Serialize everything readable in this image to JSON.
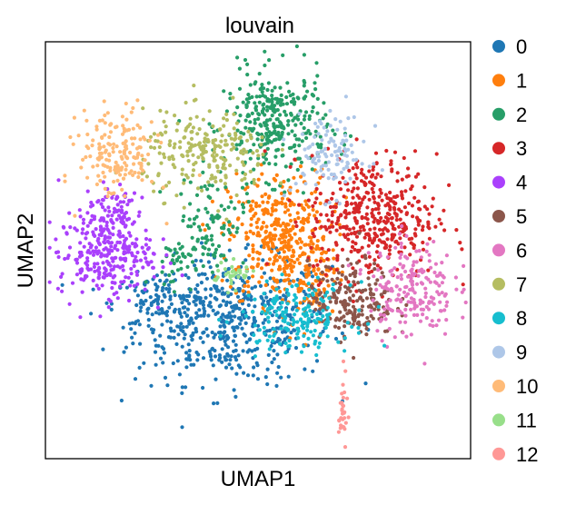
{
  "chart_data": {
    "type": "scatter",
    "title": "louvain",
    "xlabel": "UMAP1",
    "ylabel": "UMAP2",
    "grid": false,
    "legend_position": "right",
    "xlim": [
      0,
      10
    ],
    "ylim": [
      0,
      10
    ],
    "series": [
      {
        "name": "0",
        "color": "#1f77b4",
        "clusters": [
          {
            "cx": 4.4,
            "cy": 3.3,
            "sx": 1.15,
            "sy": 0.75,
            "n": 520
          },
          {
            "cx": 2.6,
            "cy": 3.7,
            "sx": 0.5,
            "sy": 0.35,
            "n": 90
          }
        ]
      },
      {
        "name": "1",
        "color": "#ff7f0e",
        "clusters": [
          {
            "cx": 5.5,
            "cy": 5.3,
            "sx": 0.6,
            "sy": 0.8,
            "n": 380
          },
          {
            "cx": 6.3,
            "cy": 4.3,
            "sx": 0.4,
            "sy": 0.5,
            "n": 70
          }
        ]
      },
      {
        "name": "2",
        "color": "#279e68",
        "clusters": [
          {
            "cx": 5.4,
            "cy": 8.0,
            "sx": 0.6,
            "sy": 0.65,
            "n": 320
          },
          {
            "cx": 3.9,
            "cy": 5.7,
            "sx": 0.4,
            "sy": 0.55,
            "n": 90
          },
          {
            "cx": 3.0,
            "cy": 4.7,
            "sx": 0.25,
            "sy": 0.3,
            "n": 40
          }
        ]
      },
      {
        "name": "3",
        "color": "#d62728",
        "clusters": [
          {
            "cx": 7.7,
            "cy": 5.8,
            "sx": 0.75,
            "sy": 0.75,
            "n": 420
          }
        ]
      },
      {
        "name": "4",
        "color": "#aa40fc",
        "clusters": [
          {
            "cx": 1.4,
            "cy": 4.9,
            "sx": 0.55,
            "sy": 0.5,
            "n": 280
          },
          {
            "cx": 1.6,
            "cy": 6.0,
            "sx": 0.35,
            "sy": 0.3,
            "n": 70
          }
        ]
      },
      {
        "name": "5",
        "color": "#8c564b",
        "clusters": [
          {
            "cx": 7.2,
            "cy": 3.8,
            "sx": 0.5,
            "sy": 0.45,
            "n": 200
          }
        ]
      },
      {
        "name": "6",
        "color": "#e377c2",
        "clusters": [
          {
            "cx": 8.6,
            "cy": 4.1,
            "sx": 0.5,
            "sy": 0.6,
            "n": 200
          }
        ]
      },
      {
        "name": "7",
        "color": "#b5bd61",
        "clusters": [
          {
            "cx": 3.8,
            "cy": 7.3,
            "sx": 0.75,
            "sy": 0.5,
            "n": 220
          }
        ]
      },
      {
        "name": "8",
        "color": "#17becf",
        "clusters": [
          {
            "cx": 5.9,
            "cy": 3.4,
            "sx": 0.65,
            "sy": 0.4,
            "n": 180
          }
        ]
      },
      {
        "name": "9",
        "color": "#aec7e8",
        "clusters": [
          {
            "cx": 6.7,
            "cy": 7.3,
            "sx": 0.45,
            "sy": 0.5,
            "n": 110
          }
        ]
      },
      {
        "name": "10",
        "color": "#ffbb78",
        "clusters": [
          {
            "cx": 1.7,
            "cy": 7.3,
            "sx": 0.45,
            "sy": 0.55,
            "n": 170
          }
        ]
      },
      {
        "name": "11",
        "color": "#98df8a",
        "clusters": [
          {
            "cx": 4.4,
            "cy": 4.4,
            "sx": 0.25,
            "sy": 0.15,
            "n": 35
          }
        ]
      },
      {
        "name": "12",
        "color": "#ff9896",
        "clusters": [
          {
            "cx": 7.0,
            "cy": 1.1,
            "sx": 0.05,
            "sy": 0.45,
            "n": 30
          }
        ]
      }
    ]
  }
}
